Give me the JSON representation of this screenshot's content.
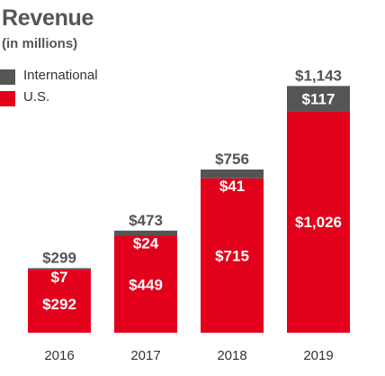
{
  "chart_data": {
    "type": "bar",
    "stacked": true,
    "title": "Revenue",
    "subtitle": "(in millions)",
    "categories": [
      "2016",
      "2017",
      "2018",
      "2019"
    ],
    "series": [
      {
        "name": "U.S.",
        "color": "#e3001b",
        "values": [
          292,
          449,
          715,
          1026
        ],
        "labels": [
          "$292",
          "$449",
          "$715",
          "$1,026"
        ]
      },
      {
        "name": "International",
        "color": "#555555",
        "values": [
          7,
          24,
          41,
          117
        ],
        "labels": [
          "$7",
          "$24",
          "$41",
          "$117"
        ]
      }
    ],
    "totals": [
      299,
      473,
      756,
      1143
    ],
    "total_labels": [
      "$299",
      "$473",
      "$756",
      "$1,143"
    ],
    "legend": [
      {
        "name": "International",
        "color": "#555555"
      },
      {
        "name": "U.S.",
        "color": "#e3001b"
      }
    ],
    "legend_position": "top-left",
    "grid": false
  }
}
